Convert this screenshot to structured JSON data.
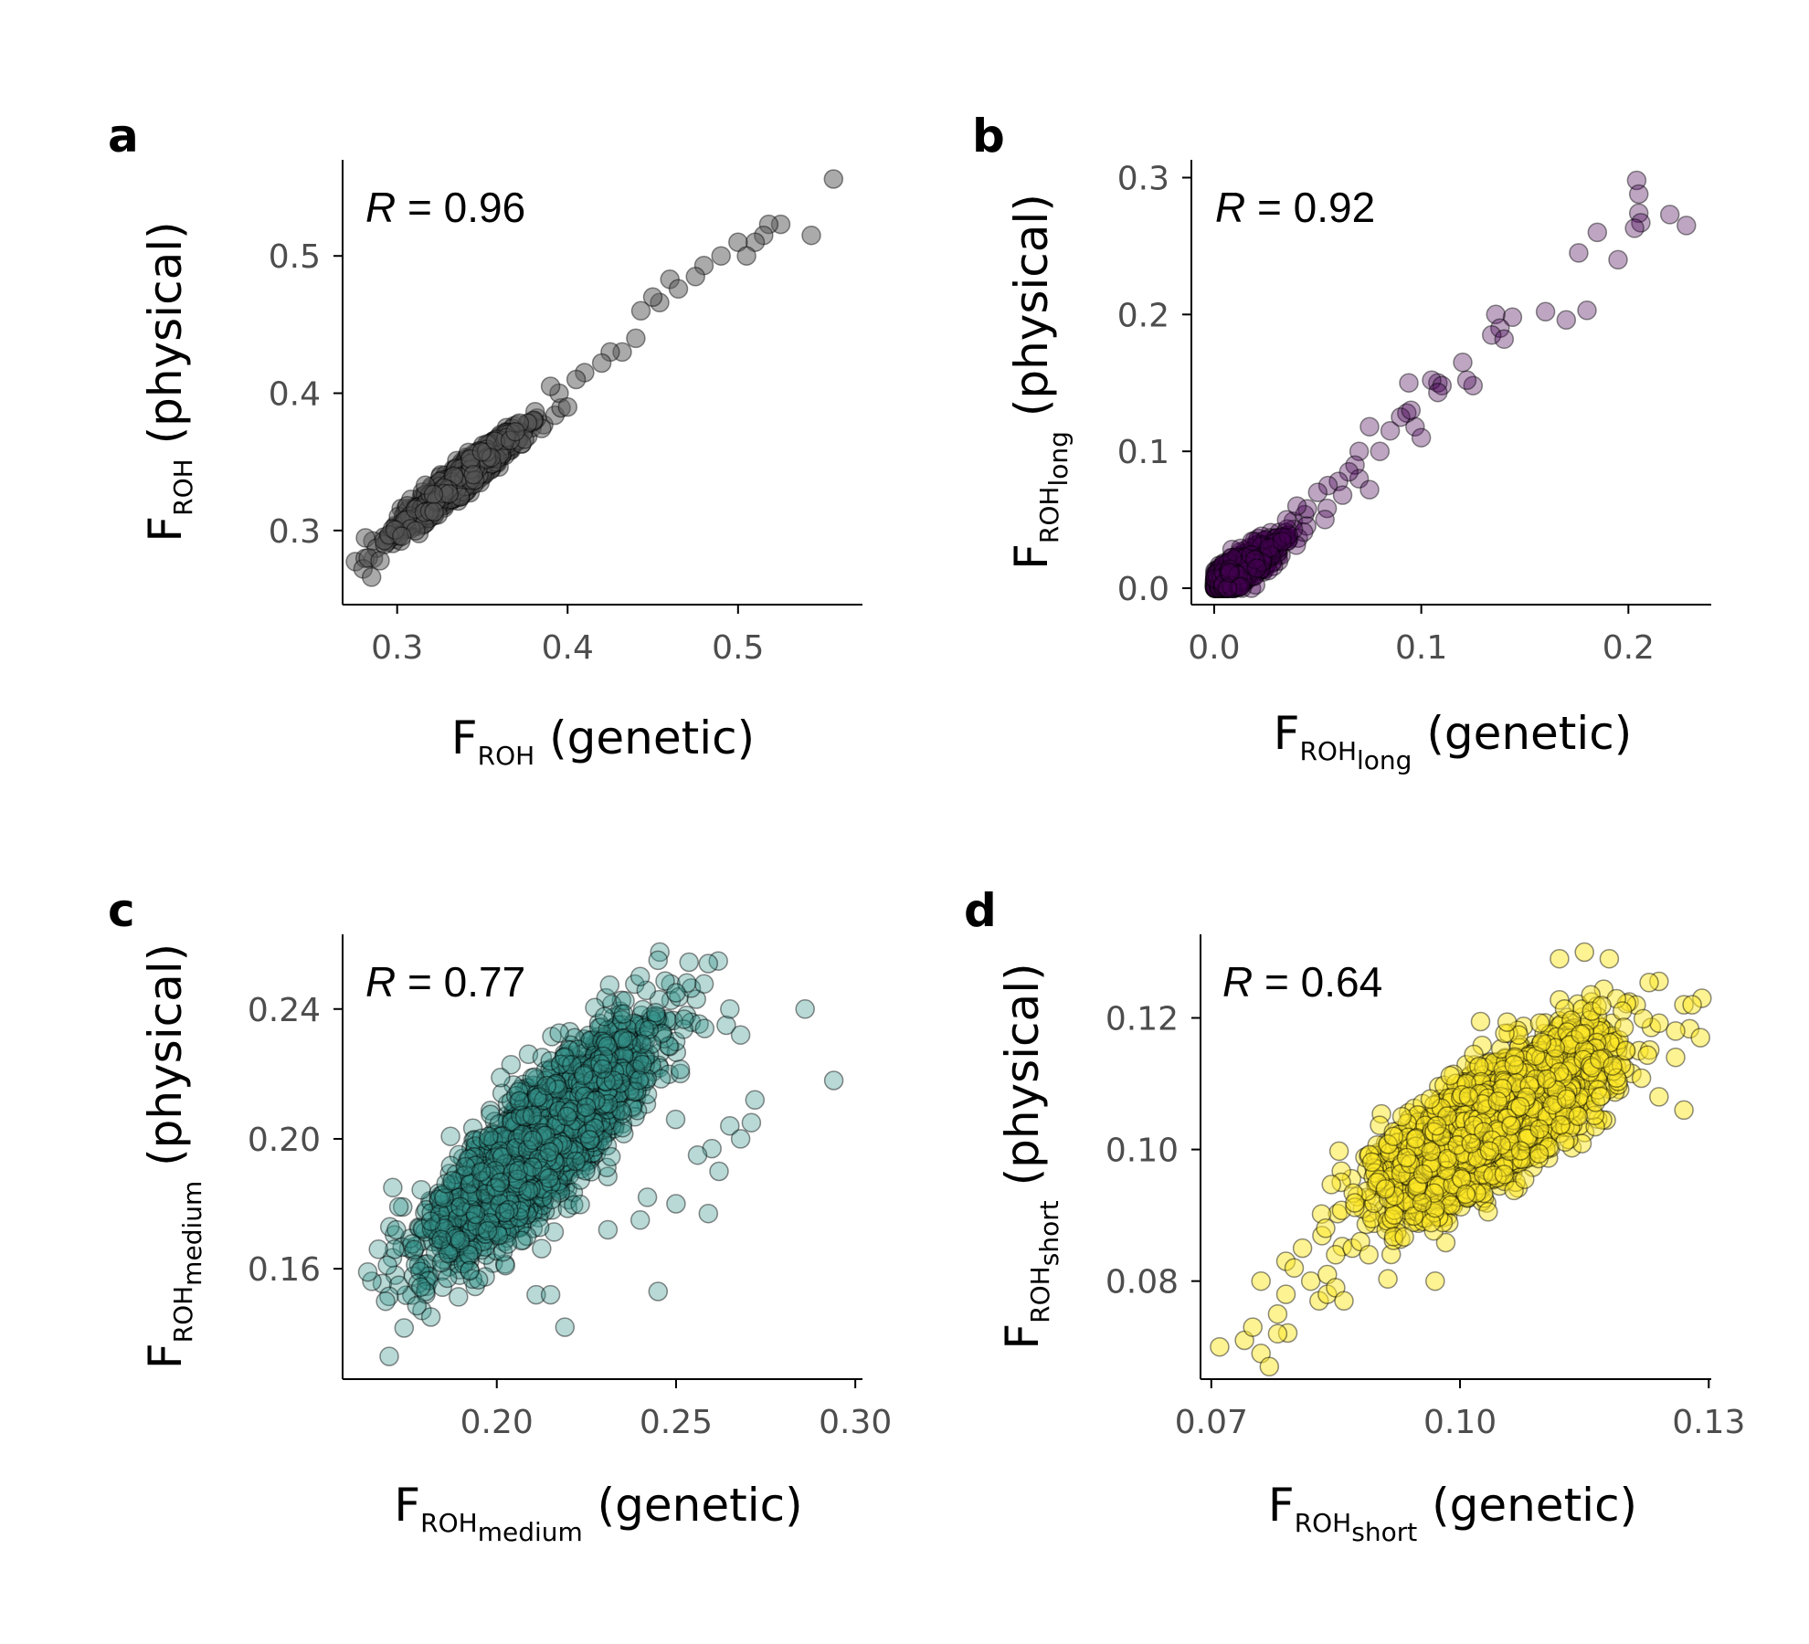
{
  "chart_data": [
    {
      "panel": "a",
      "type": "scatter",
      "xlabel": {
        "main": "F",
        "sub": "ROH",
        "subsub": "",
        "suffix": " (genetic)"
      },
      "ylabel": {
        "main": "F",
        "sub": "ROH",
        "subsub": "",
        "suffix": " (physical)"
      },
      "r_label": {
        "r": "R",
        "value": " = 0.96"
      },
      "xlim": [
        0.268,
        0.573
      ],
      "ylim": [
        0.246,
        0.57
      ],
      "xticks": [
        0.3,
        0.4,
        0.5
      ],
      "xtick_labels": [
        "0.3",
        "0.4",
        "0.5"
      ],
      "yticks": [
        0.3,
        0.4,
        0.5
      ],
      "ytick_labels": [
        "0.3",
        "0.4",
        "0.5"
      ],
      "color": "#555555",
      "point_opacity": 0.5,
      "cloud": {
        "n": 1400,
        "cx": 0.335,
        "cy": 0.335,
        "slope": 1.0,
        "sx": 0.017,
        "sy_resid": 0.005
      },
      "points": [
        [
          0.556,
          0.556
        ],
        [
          0.543,
          0.515
        ],
        [
          0.525,
          0.523
        ],
        [
          0.518,
          0.523
        ],
        [
          0.515,
          0.515
        ],
        [
          0.51,
          0.51
        ],
        [
          0.5,
          0.51
        ],
        [
          0.505,
          0.5
        ],
        [
          0.49,
          0.5
        ],
        [
          0.48,
          0.493
        ],
        [
          0.475,
          0.485
        ],
        [
          0.46,
          0.483
        ],
        [
          0.465,
          0.476
        ],
        [
          0.454,
          0.466
        ],
        [
          0.45,
          0.47
        ],
        [
          0.443,
          0.46
        ],
        [
          0.44,
          0.44
        ],
        [
          0.432,
          0.43
        ],
        [
          0.425,
          0.43
        ],
        [
          0.42,
          0.422
        ],
        [
          0.41,
          0.415
        ],
        [
          0.405,
          0.41
        ],
        [
          0.395,
          0.4
        ],
        [
          0.4,
          0.39
        ],
        [
          0.39,
          0.405
        ],
        [
          0.28,
          0.272
        ],
        [
          0.285,
          0.266
        ],
        [
          0.283,
          0.28
        ],
        [
          0.29,
          0.278
        ]
      ]
    },
    {
      "panel": "b",
      "type": "scatter",
      "xlabel": {
        "main": "F",
        "sub": "ROH",
        "subsub": "long",
        "suffix": " (genetic)"
      },
      "ylabel": {
        "main": "F",
        "sub": "ROH",
        "subsub": "long",
        "suffix": " (physical)"
      },
      "r_label": {
        "r": "R",
        "value": " = 0.92"
      },
      "xlim": [
        -0.011,
        0.24
      ],
      "ylim": [
        -0.012,
        0.313
      ],
      "xticks": [
        0.0,
        0.1,
        0.2
      ],
      "xtick_labels": [
        "0.0",
        "0.1",
        "0.2"
      ],
      "yticks": [
        0.0,
        0.1,
        0.2,
        0.3
      ],
      "ytick_labels": [
        "0.0",
        "0.1",
        "0.2",
        "0.3"
      ],
      "color": "#440154",
      "point_opacity": 0.35,
      "cloud": {
        "n": 900,
        "cx": 0.012,
        "cy": 0.012,
        "slope": 1.0,
        "sx": 0.012,
        "sy_resid": 0.006,
        "expo": true
      },
      "points": [
        [
          0.204,
          0.298
        ],
        [
          0.205,
          0.288
        ],
        [
          0.22,
          0.273
        ],
        [
          0.228,
          0.265
        ],
        [
          0.205,
          0.274
        ],
        [
          0.206,
          0.267
        ],
        [
          0.203,
          0.263
        ],
        [
          0.195,
          0.24
        ],
        [
          0.185,
          0.26
        ],
        [
          0.176,
          0.245
        ],
        [
          0.18,
          0.203
        ],
        [
          0.16,
          0.202
        ],
        [
          0.17,
          0.196
        ],
        [
          0.144,
          0.198
        ],
        [
          0.136,
          0.2
        ],
        [
          0.138,
          0.19
        ],
        [
          0.134,
          0.185
        ],
        [
          0.14,
          0.182
        ],
        [
          0.108,
          0.15
        ],
        [
          0.105,
          0.152
        ],
        [
          0.11,
          0.148
        ],
        [
          0.125,
          0.148
        ],
        [
          0.122,
          0.152
        ],
        [
          0.108,
          0.143
        ],
        [
          0.094,
          0.15
        ],
        [
          0.097,
          0.118
        ],
        [
          0.093,
          0.128
        ],
        [
          0.09,
          0.125
        ],
        [
          0.1,
          0.11
        ],
        [
          0.085,
          0.115
        ],
        [
          0.095,
          0.13
        ],
        [
          0.12,
          0.165
        ],
        [
          0.075,
          0.118
        ],
        [
          0.08,
          0.1
        ],
        [
          0.07,
          0.1
        ],
        [
          0.068,
          0.09
        ],
        [
          0.07,
          0.08
        ],
        [
          0.075,
          0.072
        ],
        [
          0.065,
          0.085
        ],
        [
          0.06,
          0.078
        ],
        [
          0.055,
          0.075
        ],
        [
          0.05,
          0.07
        ],
        [
          0.062,
          0.068
        ],
        [
          0.045,
          0.058
        ],
        [
          0.04,
          0.06
        ],
        [
          0.035,
          0.05
        ]
      ]
    },
    {
      "panel": "c",
      "type": "scatter",
      "xlabel": {
        "main": "F",
        "sub": "ROH",
        "subsub": "medium",
        "suffix": " (genetic)"
      },
      "ylabel": {
        "main": "F",
        "sub": "ROH",
        "subsub": "medium",
        "suffix": " (physical)"
      },
      "r_label": {
        "r": "R",
        "value": " = 0.77"
      },
      "xlim": [
        0.157,
        0.302
      ],
      "ylim": [
        0.126,
        0.263
      ],
      "xticks": [
        0.2,
        0.25,
        0.3
      ],
      "xtick_labels": [
        "0.20",
        "0.25",
        "0.30"
      ],
      "yticks": [
        0.16,
        0.2,
        0.24
      ],
      "ytick_labels": [
        "0.16",
        "0.20",
        "0.24"
      ],
      "color": "#35938a",
      "point_opacity": 0.35,
      "cloud": {
        "n": 2600,
        "cx": 0.212,
        "cy": 0.198,
        "slope": 1.0,
        "sx": 0.015,
        "sy_resid": 0.0095
      },
      "points": [
        [
          0.294,
          0.218
        ],
        [
          0.286,
          0.24
        ],
        [
          0.272,
          0.212
        ],
        [
          0.271,
          0.205
        ],
        [
          0.265,
          0.204
        ],
        [
          0.268,
          0.2
        ],
        [
          0.26,
          0.197
        ],
        [
          0.262,
          0.19
        ],
        [
          0.256,
          0.195
        ],
        [
          0.259,
          0.177
        ],
        [
          0.245,
          0.153
        ],
        [
          0.219,
          0.142
        ],
        [
          0.211,
          0.152
        ],
        [
          0.215,
          0.152
        ],
        [
          0.231,
          0.172
        ],
        [
          0.17,
          0.133
        ],
        [
          0.164,
          0.159
        ],
        [
          0.167,
          0.166
        ],
        [
          0.169,
          0.15
        ],
        [
          0.172,
          0.172
        ],
        [
          0.171,
          0.185
        ],
        [
          0.264,
          0.235
        ],
        [
          0.268,
          0.232
        ],
        [
          0.259,
          0.254
        ],
        [
          0.253,
          0.248
        ],
        [
          0.245,
          0.255
        ],
        [
          0.24,
          0.25
        ],
        [
          0.25,
          0.245
        ],
        [
          0.258,
          0.234
        ],
        [
          0.265,
          0.24
        ],
        [
          0.25,
          0.18
        ],
        [
          0.242,
          0.182
        ],
        [
          0.24,
          0.175
        ]
      ]
    },
    {
      "panel": "d",
      "type": "scatter",
      "xlabel": {
        "main": "F",
        "sub": "ROH",
        "subsub": "short",
        "suffix": " (genetic)"
      },
      "ylabel": {
        "main": "F",
        "sub": "ROH",
        "subsub": "short",
        "suffix": " (physical)"
      },
      "r_label": {
        "r": "R",
        "value": " = 0.64"
      },
      "xlim": [
        0.0687,
        0.1303
      ],
      "ylim": [
        0.0651,
        0.1327
      ],
      "xticks": [
        0.07,
        0.1,
        0.13
      ],
      "xtick_labels": [
        "0.07",
        "0.10",
        "0.13"
      ],
      "yticks": [
        0.08,
        0.1,
        0.12
      ],
      "ytick_labels": [
        "0.08",
        "0.10",
        "0.12"
      ],
      "color": "#fde725",
      "point_opacity": 0.5,
      "cloud": {
        "n": 2600,
        "cx": 0.104,
        "cy": 0.104,
        "slope": 0.75,
        "sx": 0.0065,
        "sy_resid": 0.0045
      },
      "points": [
        [
          0.071,
          0.07
        ],
        [
          0.074,
          0.071
        ],
        [
          0.075,
          0.073
        ],
        [
          0.076,
          0.069
        ],
        [
          0.077,
          0.067
        ],
        [
          0.076,
          0.08
        ],
        [
          0.078,
          0.072
        ],
        [
          0.078,
          0.075
        ],
        [
          0.079,
          0.078
        ],
        [
          0.079,
          0.083
        ],
        [
          0.08,
          0.082
        ],
        [
          0.081,
          0.085
        ],
        [
          0.082,
          0.08
        ],
        [
          0.083,
          0.077
        ],
        [
          0.084,
          0.078
        ],
        [
          0.084,
          0.081
        ],
        [
          0.085,
          0.079
        ],
        [
          0.086,
          0.077
        ],
        [
          0.085,
          0.084
        ],
        [
          0.087,
          0.085
        ],
        [
          0.088,
          0.086
        ],
        [
          0.089,
          0.084
        ],
        [
          0.09,
          0.095
        ],
        [
          0.091,
          0.094
        ],
        [
          0.092,
          0.102
        ],
        [
          0.093,
          0.105
        ],
        [
          0.097,
          0.08
        ],
        [
          0.115,
          0.13
        ],
        [
          0.112,
          0.129
        ],
        [
          0.118,
          0.129
        ],
        [
          0.127,
          0.122
        ],
        [
          0.128,
          0.122
        ],
        [
          0.129,
          0.117
        ],
        [
          0.126,
          0.118
        ],
        [
          0.127,
          0.106
        ],
        [
          0.124,
          0.108
        ],
        [
          0.126,
          0.114
        ]
      ]
    }
  ],
  "panels": {
    "a": {
      "letter": "a"
    },
    "b": {
      "letter": "b"
    },
    "c": {
      "letter": "c"
    },
    "d": {
      "letter": "d"
    }
  }
}
